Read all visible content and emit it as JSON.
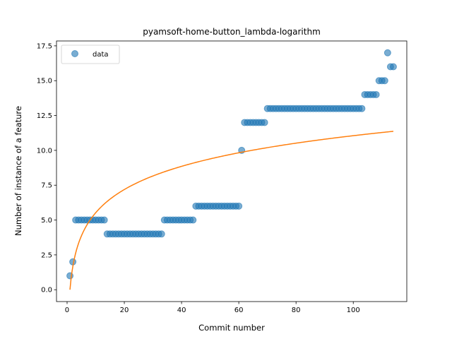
{
  "chart_data": {
    "type": "scatter",
    "title": "pyamsoft-home-button_lambda-logarithm",
    "xlabel": "Commit number",
    "ylabel": "Number of instance of a feature",
    "xlim": [
      -3.7,
      118.7
    ],
    "ylim": [
      -0.85,
      17.85
    ],
    "xticks": [
      0,
      20,
      40,
      60,
      80,
      100
    ],
    "xtick_labels": [
      "0",
      "20",
      "40",
      "60",
      "80",
      "100"
    ],
    "yticks": [
      0.0,
      2.5,
      5.0,
      7.5,
      10.0,
      12.5,
      15.0,
      17.5
    ],
    "ytick_labels": [
      "0.0",
      "2.5",
      "5.0",
      "7.5",
      "10.0",
      "12.5",
      "15.0",
      "17.5"
    ],
    "legend": {
      "placement": "top-left",
      "entries": [
        "data"
      ]
    },
    "series": [
      {
        "name": "data",
        "kind": "scatter",
        "color": "#1f77b4",
        "x": [
          1,
          2,
          3,
          4,
          5,
          6,
          7,
          8,
          9,
          10,
          11,
          12,
          13,
          14,
          15,
          16,
          17,
          18,
          19,
          20,
          21,
          22,
          23,
          24,
          25,
          26,
          27,
          28,
          29,
          30,
          31,
          32,
          33,
          34,
          35,
          36,
          37,
          38,
          39,
          40,
          41,
          42,
          43,
          44,
          45,
          46,
          47,
          48,
          49,
          50,
          51,
          52,
          53,
          54,
          55,
          56,
          57,
          58,
          59,
          60,
          61,
          62,
          63,
          64,
          65,
          66,
          67,
          68,
          69,
          70,
          71,
          72,
          73,
          74,
          75,
          76,
          77,
          78,
          79,
          80,
          81,
          82,
          83,
          84,
          85,
          86,
          87,
          88,
          89,
          90,
          91,
          92,
          93,
          94,
          95,
          96,
          97,
          98,
          99,
          100,
          101,
          102,
          103,
          104,
          105,
          106,
          107,
          108,
          109,
          110,
          111,
          112,
          113,
          114
        ],
        "y": [
          1,
          2,
          5,
          5,
          5,
          5,
          5,
          5,
          5,
          5,
          5,
          5,
          5,
          4,
          4,
          4,
          4,
          4,
          4,
          4,
          4,
          4,
          4,
          4,
          4,
          4,
          4,
          4,
          4,
          4,
          4,
          4,
          4,
          5,
          5,
          5,
          5,
          5,
          5,
          5,
          5,
          5,
          5,
          5,
          6,
          6,
          6,
          6,
          6,
          6,
          6,
          6,
          6,
          6,
          6,
          6,
          6,
          6,
          6,
          6,
          10,
          12,
          12,
          12,
          12,
          12,
          12,
          12,
          12,
          13,
          13,
          13,
          13,
          13,
          13,
          13,
          13,
          13,
          13,
          13,
          13,
          13,
          13,
          13,
          13,
          13,
          13,
          13,
          13,
          13,
          13,
          13,
          13,
          13,
          13,
          13,
          13,
          13,
          13,
          13,
          13,
          13,
          13,
          14,
          14,
          14,
          14,
          14,
          15,
          15,
          15,
          17,
          16,
          16
        ]
      },
      {
        "kind": "line",
        "color": "#ff7f0e",
        "curve": "2.4*ln(x)",
        "x_range": [
          1,
          114
        ]
      }
    ]
  }
}
